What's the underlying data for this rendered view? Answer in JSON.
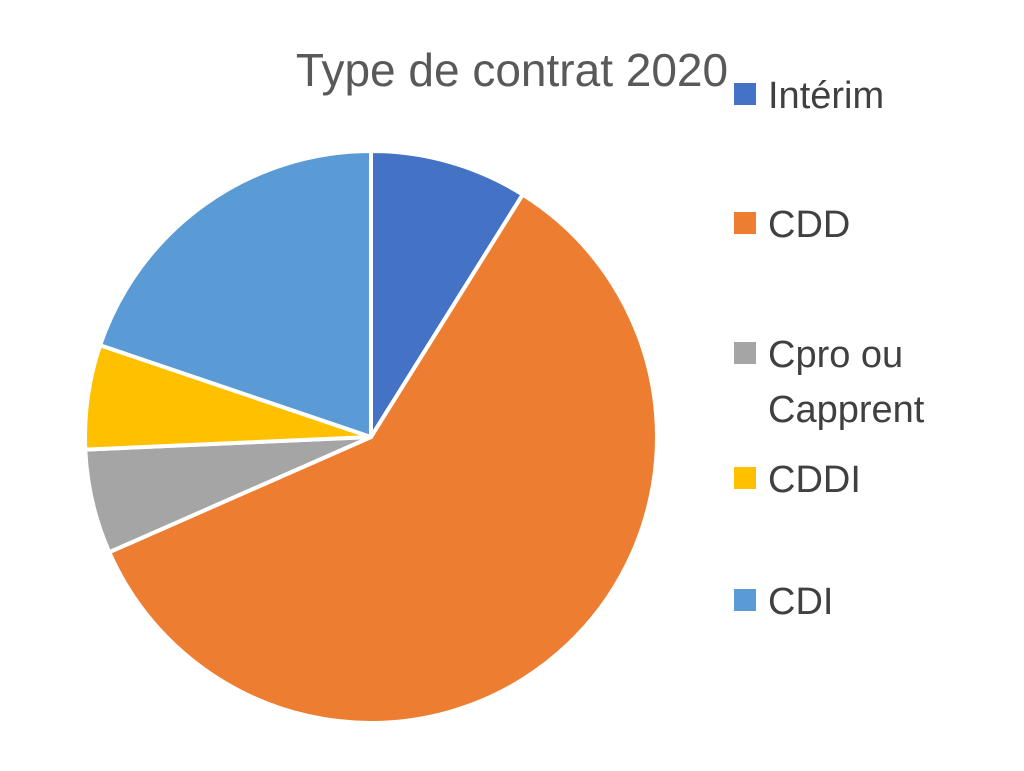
{
  "chart_data": {
    "type": "pie",
    "title": "Type de contrat 2020",
    "categories": [
      "Intérim",
      "CDD",
      "Cpro ou Capprent",
      "CDDI",
      "CDI"
    ],
    "values": [
      8.9,
      59.5,
      5.9,
      5.9,
      19.8
    ],
    "colors": [
      "#4472C4",
      "#ED7D31",
      "#A5A5A5",
      "#FFC000",
      "#5B9BD5"
    ],
    "legend": {
      "position": "right",
      "lines": [
        [
          "Intérim"
        ],
        [
          "CDD"
        ],
        [
          "Cpro ou",
          "Capprent"
        ],
        [
          "CDDI"
        ],
        [
          "CDI"
        ]
      ]
    }
  }
}
